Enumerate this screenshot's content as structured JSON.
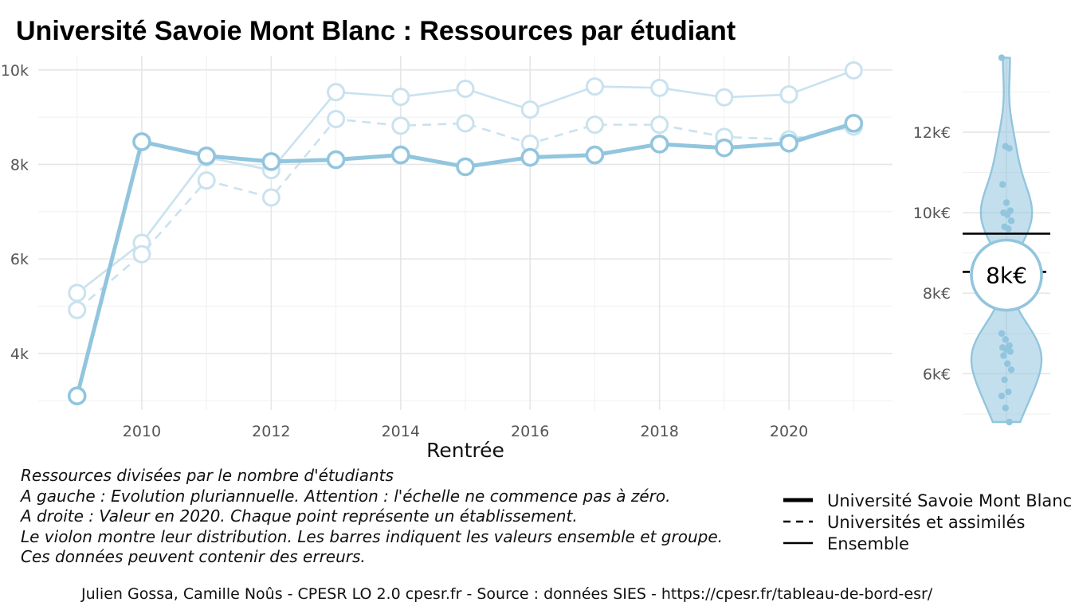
{
  "title": "Université Savoie Mont Blanc  :  Ressources par étudiant",
  "chart_data": [
    {
      "type": "line",
      "xlabel": "Rentrée",
      "ylabel": "",
      "x": [
        2009,
        2010,
        2011,
        2012,
        2013,
        2014,
        2015,
        2016,
        2017,
        2018,
        2019,
        2020,
        2021
      ],
      "xlim": [
        2008.4,
        2021.6
      ],
      "ylim": [
        2800,
        10300
      ],
      "x_ticks": [
        2010,
        2012,
        2014,
        2016,
        2018,
        2020
      ],
      "x_tick_labels": [
        "2010",
        "2012",
        "2014",
        "2016",
        "2018",
        "2020"
      ],
      "y_ticks": [
        4000,
        6000,
        8000,
        10000
      ],
      "y_tick_labels": [
        "4k",
        "6k",
        "8k",
        "10k"
      ],
      "grid": true,
      "series": [
        {
          "name": "Université Savoie Mont Blanc",
          "values": [
            3100,
            8480,
            8180,
            8060,
            8100,
            8200,
            7950,
            8150,
            8200,
            8430,
            8350,
            8450,
            8870
          ],
          "style": "bold",
          "color": "#92c5de"
        },
        {
          "name": "Universités et assimilés",
          "values": [
            4920,
            6100,
            7660,
            7300,
            8960,
            8820,
            8870,
            8440,
            8840,
            8840,
            8580,
            8530,
            8800
          ],
          "style": "dashed",
          "color": "#c9e2ef"
        },
        {
          "name": "Ensemble",
          "values": [
            5280,
            6340,
            8150,
            7880,
            9530,
            9430,
            9600,
            9160,
            9650,
            9620,
            9420,
            9480,
            9990
          ],
          "style": "solid",
          "color": "#c9e2ef"
        }
      ]
    },
    {
      "type": "violin",
      "xlabel": "",
      "ylabel": "",
      "ylim": [
        4800,
        13900
      ],
      "y_ticks": [
        6000,
        8000,
        10000,
        12000
      ],
      "y_tick_labels": [
        "6k€",
        "8k€",
        "10k€",
        "12k€"
      ],
      "points": [
        13850,
        11650,
        11600,
        10700,
        10250,
        10050,
        10000,
        9950,
        9800,
        9650,
        9600,
        7000,
        6850,
        6700,
        6650,
        6600,
        6550,
        6450,
        6250,
        6100,
        5850,
        5550,
        5450,
        5150,
        4800
      ],
      "reference_lines": [
        {
          "series": "Ensemble",
          "value": 9480
        },
        {
          "series": "Universités et assimilés",
          "value": 8530
        }
      ],
      "highlight": {
        "value": 8450,
        "label": "8k€"
      },
      "color": "#92c5de"
    }
  ],
  "caption": [
    "Ressources divisées par le nombre d'étudiants",
    "A gauche : Evolution pluriannuelle. Attention : l'échelle ne commence pas à zéro.",
    "A droite : Valeur en 2020. Chaque point représente un établissement.",
    "Le violon montre leur distribution. Les barres indiquent les valeurs ensemble et groupe.",
    "Ces données peuvent contenir des erreurs."
  ],
  "legend": [
    {
      "label": "Université Savoie Mont Blanc",
      "style": "bold"
    },
    {
      "label": "Universités et assimilés",
      "style": "dashed"
    },
    {
      "label": "Ensemble",
      "style": "solid"
    }
  ],
  "footer": "Julien Gossa, Camille Noûs - CPESR LO 2.0 cpesr.fr - Source : données SIES - https://cpesr.fr/tableau-de-bord-esr/",
  "colors": {
    "accent": "#92c5de",
    "accent_light": "#c9e2ef",
    "grid": "#e6e6e6",
    "text": "#111111"
  }
}
